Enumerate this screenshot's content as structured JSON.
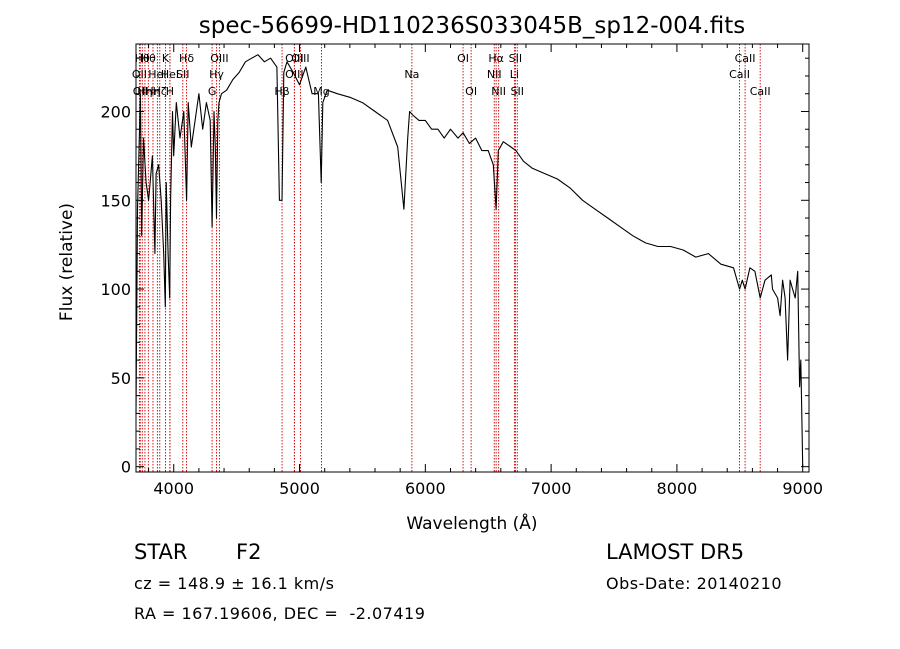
{
  "chart_data": {
    "type": "line",
    "title": "spec-56699-HD110236S033045B_sp12-004.fits",
    "xlabel": "Wavelength (Å)",
    "ylabel": "Flux (relative)",
    "xlim": [
      3700,
      9050
    ],
    "ylim": [
      -3,
      238
    ],
    "xticks": [
      4000,
      5000,
      6000,
      7000,
      8000,
      9000
    ],
    "yticks": [
      0,
      50,
      100,
      150,
      200
    ],
    "grid": false,
    "line_color": "#000000",
    "marker_color": "#cc0000",
    "series": [
      {
        "x": [
          3700,
          3712,
          3725,
          3735,
          3745,
          3760,
          3780,
          3800,
          3830,
          3850,
          3860,
          3880,
          3900,
          3920,
          3933,
          3940,
          3955,
          3968,
          3975,
          3990,
          4000,
          4020,
          4050,
          4080,
          4102,
          4115,
          4140,
          4170,
          4200,
          4230,
          4260,
          4290,
          4305,
          4320,
          4330,
          4340,
          4350,
          4360,
          4380,
          4420,
          4470,
          4520,
          4570,
          4620,
          4670,
          4720,
          4770,
          4820,
          4840,
          4861,
          4875,
          4900,
          4950,
          5000,
          5050,
          5100,
          5150,
          5172,
          5185,
          5220,
          5300,
          5400,
          5500,
          5600,
          5700,
          5780,
          5830,
          5860,
          5875,
          5900,
          5950,
          6000,
          6050,
          6100,
          6150,
          6200,
          6260,
          6300,
          6350,
          6400,
          6450,
          6500,
          6540,
          6563,
          6580,
          6620,
          6680,
          6720,
          6780,
          6850,
          6950,
          7050,
          7150,
          7250,
          7350,
          7450,
          7550,
          7650,
          7750,
          7850,
          7950,
          8050,
          8150,
          8250,
          8350,
          8450,
          8498,
          8520,
          8542,
          8580,
          8620,
          8662,
          8700,
          8750,
          8760,
          8800,
          8820,
          8840,
          8860,
          8880,
          8900,
          8920,
          8940,
          8960,
          8975,
          8985,
          8995,
          9000
        ],
        "y": [
          30,
          145,
          180,
          210,
          130,
          185,
          160,
          150,
          175,
          120,
          165,
          170,
          150,
          120,
          90,
          160,
          120,
          95,
          150,
          200,
          175,
          205,
          185,
          200,
          150,
          205,
          180,
          195,
          210,
          190,
          205,
          195,
          135,
          200,
          180,
          140,
          195,
          205,
          210,
          212,
          218,
          222,
          228,
          230,
          232,
          228,
          230,
          225,
          150,
          150,
          222,
          228,
          222,
          215,
          225,
          210,
          210,
          160,
          205,
          212,
          210,
          208,
          205,
          200,
          195,
          180,
          145,
          185,
          200,
          198,
          195,
          195,
          190,
          190,
          185,
          190,
          185,
          188,
          182,
          185,
          178,
          178,
          170,
          145,
          178,
          183,
          180,
          178,
          172,
          168,
          165,
          162,
          157,
          150,
          145,
          140,
          135,
          130,
          126,
          124,
          124,
          122,
          118,
          120,
          114,
          112,
          100,
          105,
          100,
          112,
          110,
          95,
          105,
          108,
          100,
          95,
          85,
          105,
          95,
          60,
          105,
          100,
          95,
          110,
          45,
          60,
          20,
          0
        ]
      }
    ],
    "line_markers": [
      {
        "x": 3727,
        "label": "OII",
        "row": 2
      },
      {
        "x": 3734,
        "label": "OII",
        "row": 3
      },
      {
        "x": 3750,
        "label": "Hθ",
        "row": 1
      },
      {
        "x": 3771,
        "label": "Hη",
        "row": 3
      },
      {
        "x": 3798,
        "label": "Hθ",
        "row": 1
      },
      {
        "x": 3835,
        "label": "Hη",
        "row": 3
      },
      {
        "x": 3870,
        "label": "HeI",
        "row": 2
      },
      {
        "x": 3889,
        "label": "Hζ",
        "row": 3
      },
      {
        "x": 3934,
        "label": "K",
        "row": 1
      },
      {
        "x": 3969,
        "label": "H",
        "row": 3
      },
      {
        "x": 3970,
        "label": "HeI",
        "row": 2
      },
      {
        "x": 4072,
        "label": "SII",
        "row": 2
      },
      {
        "x": 4102,
        "label": "Hδ",
        "row": 1
      },
      {
        "x": 4305,
        "label": "G",
        "row": 3
      },
      {
        "x": 4340,
        "label": "Hγ",
        "row": 2
      },
      {
        "x": 4363,
        "label": "OIII",
        "row": 1
      },
      {
        "x": 4861,
        "label": "Hβ",
        "row": 3
      },
      {
        "x": 4959,
        "label": "OIII",
        "row": 1
      },
      {
        "x": 4959,
        "label": "OIII",
        "row": 2
      },
      {
        "x": 5007,
        "label": "OIII",
        "row": 1
      },
      {
        "x": 5175,
        "label": "Mg",
        "row": 3
      },
      {
        "x": 5893,
        "label": "Na",
        "row": 2
      },
      {
        "x": 6300,
        "label": "OI",
        "row": 1
      },
      {
        "x": 6364,
        "label": "OI",
        "row": 3
      },
      {
        "x": 6548,
        "label": "NII",
        "row": 2
      },
      {
        "x": 6563,
        "label": "Hα",
        "row": 1
      },
      {
        "x": 6583,
        "label": "NII",
        "row": 3
      },
      {
        "x": 6708,
        "label": "Li",
        "row": 2
      },
      {
        "x": 6716,
        "label": "SII",
        "row": 1
      },
      {
        "x": 6731,
        "label": "SII",
        "row": 3
      },
      {
        "x": 8498,
        "label": "CaII",
        "row": 2
      },
      {
        "x": 8542,
        "label": "CaII",
        "row": 1
      },
      {
        "x": 8662,
        "label": "CaII",
        "row": 3
      }
    ]
  },
  "info": {
    "object_type": "STAR",
    "subclass": "F2",
    "survey": "LAMOST DR5",
    "redshift": "cz = 148.9 ± 16.1 km/s",
    "obs_date": "Obs-Date: 20140210",
    "coords": "RA = 167.19606, DEC =  -2.07419"
  }
}
